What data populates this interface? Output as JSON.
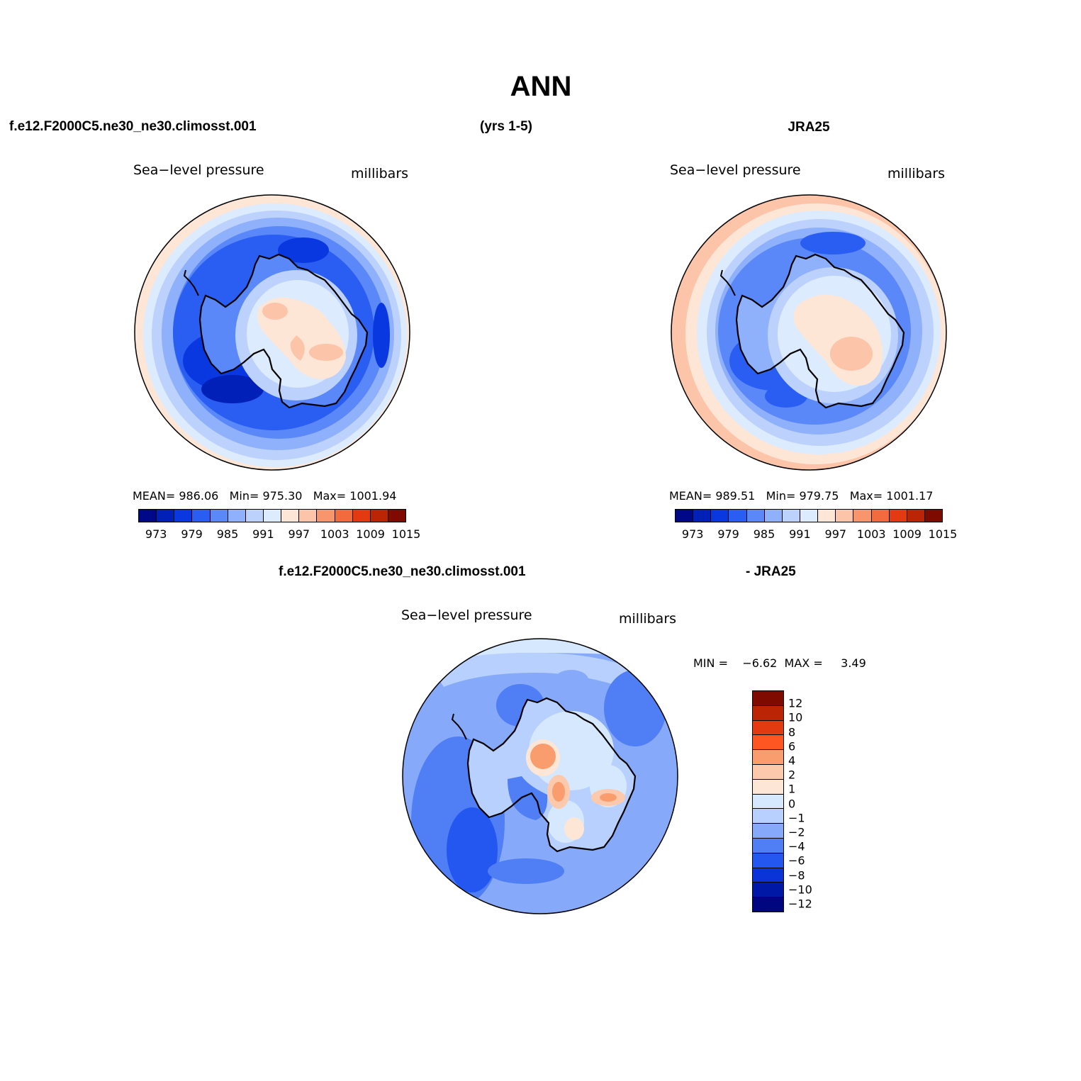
{
  "title": "ANN",
  "header": {
    "case_name": "f.e12.F2000C5.ne30_ne30.climosst.001",
    "years": "(yrs 1-5)",
    "ref_name": "JRA25"
  },
  "panels": {
    "model": {
      "variable": "Sea−level pressure",
      "units": "millibars",
      "stats": "MEAN= 986.06   Min= 975.30   Max= 1001.94",
      "colorbar_ticks": [
        "973",
        "979",
        "985",
        "991",
        "997",
        "1003",
        "1009",
        "1015"
      ]
    },
    "reference": {
      "variable": "Sea−level pressure",
      "units": "millibars",
      "stats": "MEAN= 989.51   Min= 979.75   Max= 1001.17",
      "colorbar_ticks": [
        "973",
        "979",
        "985",
        "991",
        "997",
        "1003",
        "1009",
        "1015"
      ]
    },
    "difference": {
      "case_name": "f.e12.F2000C5.ne30_ne30.climosst.001",
      "ref_suffix": "- JRA25",
      "variable": "Sea−level pressure",
      "units": "millibars",
      "stats": "MIN =    −6.62  MAX =     3.49",
      "colorbar_ticks": [
        "12",
        "10",
        "8",
        "6",
        "4",
        "2",
        "1",
        "0",
        "−1",
        "−2",
        "−4",
        "−6",
        "−8",
        "−10",
        "−12"
      ]
    }
  },
  "colors": {
    "abs_scale": [
      "#00088a",
      "#0020b8",
      "#0a38e0",
      "#2a5ef2",
      "#5a88f8",
      "#8fb0fb",
      "#bcd2fd",
      "#dcebfe",
      "#fde6d6",
      "#fcc4a8",
      "#f9956d",
      "#f36a3e",
      "#e43a12",
      "#bb2405",
      "#7f0b00"
    ],
    "diff_scale": [
      "#7f0b00",
      "#bb2405",
      "#e43a12",
      "#ff5622",
      "#fa9d6e",
      "#fdc9ad",
      "#fde6d6",
      "#d6e8fe",
      "#b8d0fd",
      "#86a9fa",
      "#4f7ef5",
      "#2357f0",
      "#0a34d8",
      "#0018a6",
      "#000680"
    ]
  }
}
